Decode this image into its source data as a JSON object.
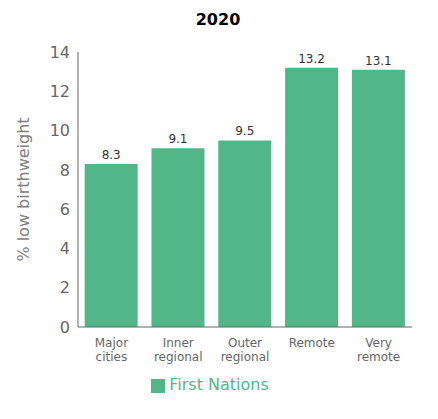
{
  "chart_data": {
    "type": "bar",
    "title": "2020",
    "categories": [
      "Major\ncities",
      "Inner\nregional",
      "Outer\nregional",
      "Remote",
      "Very\nremote"
    ],
    "series": [
      {
        "name": "First Nations",
        "color": "#52b788",
        "values": [
          8.3,
          9.1,
          9.5,
          13.2,
          13.1
        ]
      }
    ],
    "ylabel": "% low birthweight",
    "ylim": [
      0,
      14
    ],
    "yticks": [
      0,
      2,
      4,
      6,
      8,
      10,
      12,
      14
    ],
    "grid": false,
    "legend": "bottom",
    "data_labels": true
  }
}
